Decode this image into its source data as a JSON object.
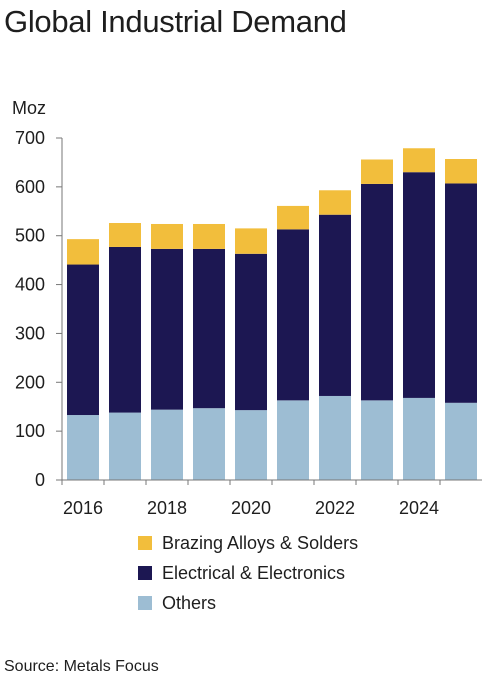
{
  "title": "Global Industrial Demand",
  "source": "Source: Metals Focus",
  "chart_data": {
    "type": "bar",
    "stacked": true,
    "title": "Global Industrial Demand",
    "unit": "Moz",
    "x": [
      2016,
      2017,
      2018,
      2019,
      2020,
      2021,
      2022,
      2023,
      2024,
      2025
    ],
    "x_tick_labels": [
      "2016",
      "2018",
      "2020",
      "2022",
      "2024"
    ],
    "y_ticks": [
      0,
      100,
      200,
      300,
      400,
      500,
      600,
      700
    ],
    "ylim": [
      0,
      700
    ],
    "grid": false,
    "legend_position": "bottom",
    "series": [
      {
        "name": "Others",
        "color": "#9dbdd3",
        "values": [
          133,
          138,
          144,
          147,
          143,
          163,
          172,
          163,
          168,
          158
        ]
      },
      {
        "name": "Electrical & Electronics",
        "color": "#1c1752",
        "values": [
          308,
          339,
          329,
          326,
          320,
          350,
          371,
          443,
          462,
          449
        ]
      },
      {
        "name": "Brazing Alloys & Solders",
        "color": "#f2be3c",
        "values": [
          52,
          49,
          51,
          51,
          52,
          48,
          50,
          50,
          49,
          50
        ]
      }
    ],
    "legend": [
      {
        "name": "Brazing Alloys & Solders",
        "color": "#f2be3c"
      },
      {
        "name": "Electrical & Electronics",
        "color": "#1c1752"
      },
      {
        "name": "Others",
        "color": "#9dbdd3"
      }
    ]
  }
}
